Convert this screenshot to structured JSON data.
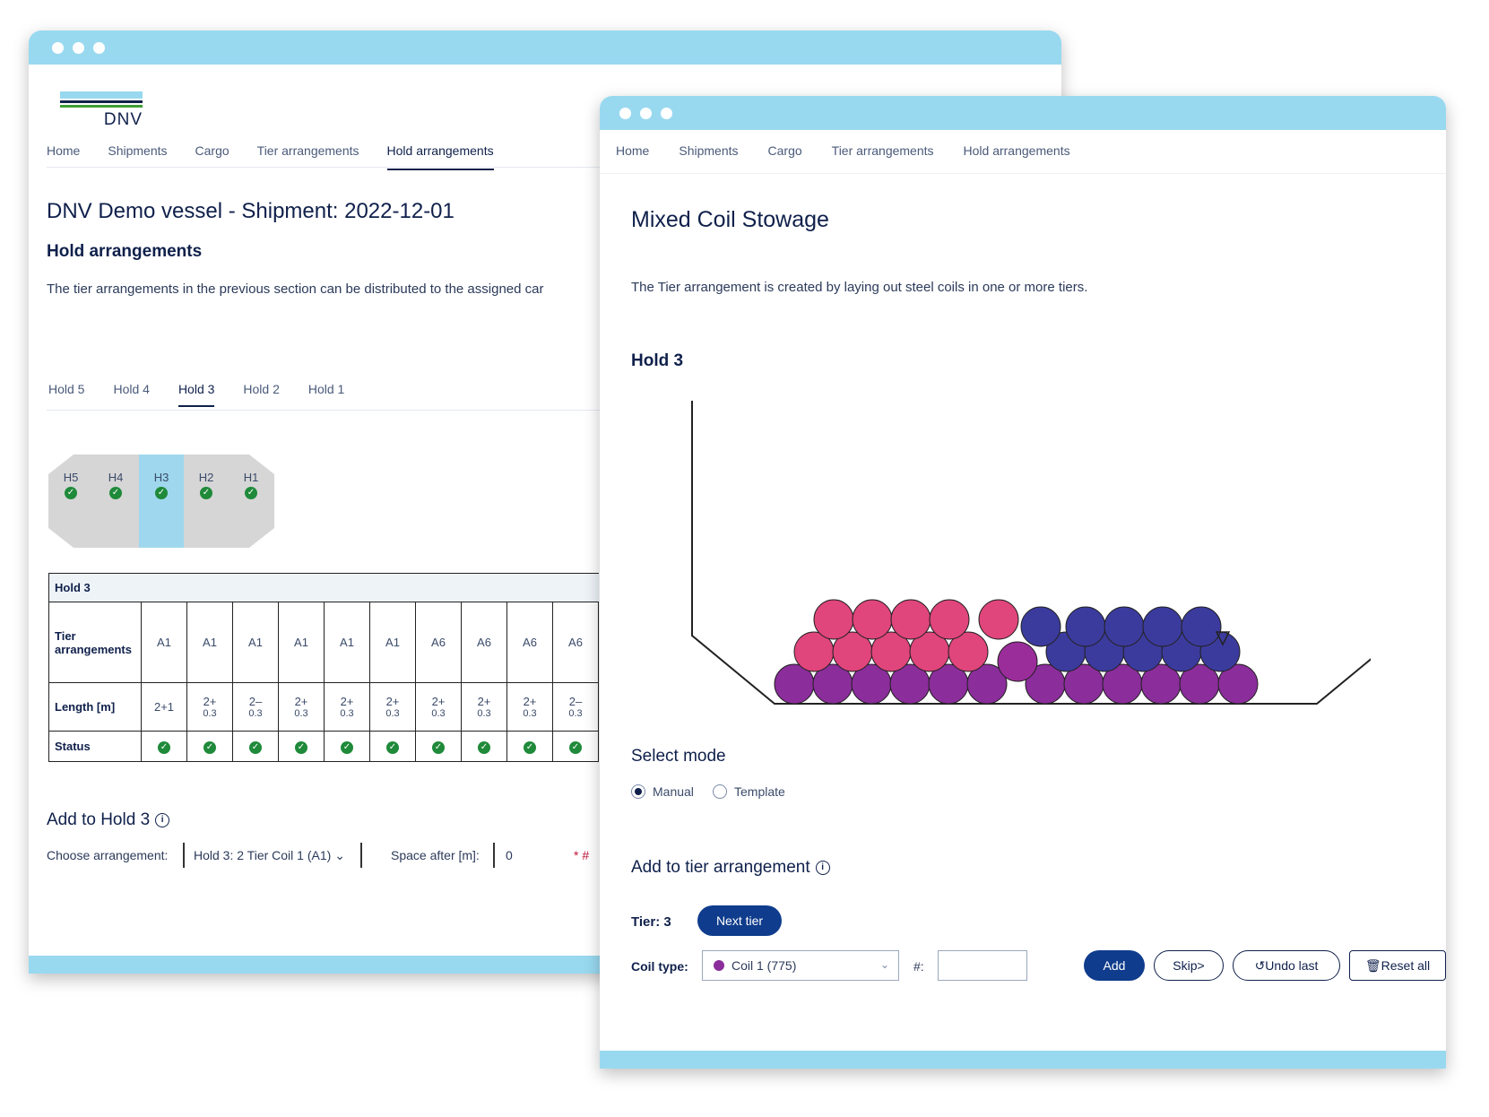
{
  "back_window": {
    "logo_text": "DNV",
    "nav": [
      "Home",
      "Shipments",
      "Cargo",
      "Tier arrangements",
      "Hold arrangements"
    ],
    "nav_active": "Hold arrangements",
    "title": "DNV Demo vessel - Shipment: 2022-12-01",
    "section_title": "Hold arrangements",
    "description": "The tier arrangements in the previous section can be distributed to the assigned car",
    "hold_tabs": [
      "Hold 5",
      "Hold 4",
      "Hold 3",
      "Hold 2",
      "Hold 1"
    ],
    "hold_tab_active": "Hold 3",
    "ship_holds": [
      "H5",
      "H4",
      "H3",
      "H2",
      "H1"
    ],
    "ship_hold_selected": "H3",
    "table": {
      "caption": "Hold 3",
      "row_tier_label": "Tier arrangements",
      "row_length_label": "Length [m]",
      "row_status_label": "Status",
      "tiers": [
        "A1",
        "A1",
        "A1",
        "A1",
        "A1",
        "A1",
        "A6",
        "A6",
        "A6",
        "A6"
      ],
      "lengths": [
        [
          "2+1",
          ""
        ],
        [
          "2+",
          "0.3"
        ],
        [
          "2–",
          "0.3"
        ],
        [
          "2+",
          "0.3"
        ],
        [
          "2+",
          "0.3"
        ],
        [
          "2+",
          "0.3"
        ],
        [
          "2+",
          "0.3"
        ],
        [
          "2+",
          "0.3"
        ],
        [
          "2+",
          "0.3"
        ],
        [
          "2–",
          "0.3"
        ]
      ],
      "status": [
        "ok",
        "ok",
        "ok",
        "ok",
        "ok",
        "ok",
        "ok",
        "ok",
        "ok",
        "ok"
      ]
    },
    "add_title": "Add to Hold 3",
    "choose_label": "Choose arrangement:",
    "choose_value": "Hold 3: 2 Tier Coil 1 (A1)",
    "space_label": "Space after [m]:",
    "space_value": "0",
    "hash_label": "* #"
  },
  "front_window": {
    "nav": [
      "Home",
      "Shipments",
      "Cargo",
      "Tier arrangements",
      "Hold arrangements"
    ],
    "title": "Mixed Coil Stowage",
    "description": "The Tier arrangement is created by laying out steel coils in one or more tiers.",
    "hold_title": "Hold 3",
    "coil_colors": {
      "bottom": "#8b2d9b",
      "pink": "#e0457b",
      "blue": "#3b3b9e",
      "purple_mid": "#9b2d9b"
    },
    "select_mode_title": "Select mode",
    "modes": [
      "Manual",
      "Template"
    ],
    "mode_selected": "Manual",
    "add_title": "Add to tier arrangement",
    "tier_label": "Tier: 3",
    "next_tier_button": "Next tier",
    "coil_type_label": "Coil type:",
    "coil_type_value": "Coil 1 (775)",
    "hash_label": "#:",
    "buttons": {
      "add": "Add",
      "skip": "Skip>",
      "undo": "↺Undo last",
      "reset": "🗑Reset all"
    }
  }
}
